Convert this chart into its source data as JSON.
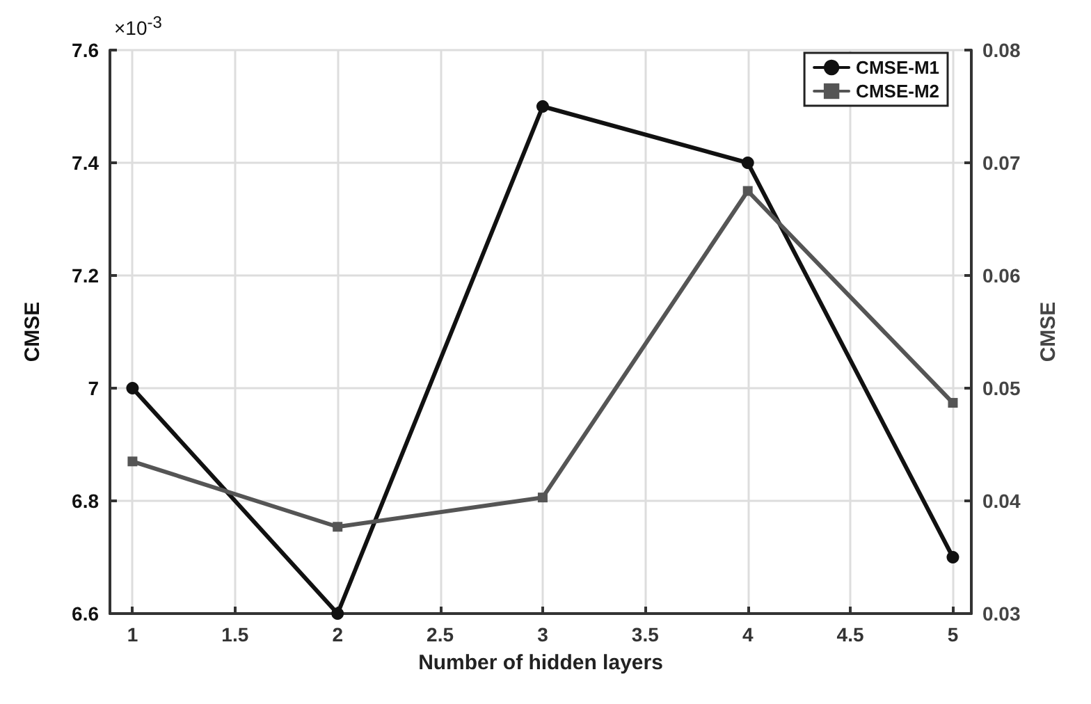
{
  "chart_data": {
    "type": "line",
    "xlabel": "Number of hidden layers",
    "ylabel": "CMSE",
    "y2label": "CMSE",
    "annotations": [
      "×10$^{-3}$"
    ],
    "x": [
      1,
      2,
      3,
      4,
      5
    ],
    "xlim": [
      0.89,
      5.09
    ],
    "xticks": [
      1,
      1.5,
      2,
      2.5,
      3,
      3.5,
      4,
      4.5,
      5
    ],
    "ylim": [
      6.6,
      7.6
    ],
    "yticks": [
      6.6,
      6.8,
      7,
      7.2,
      7.4,
      7.6
    ],
    "y2lim": [
      0.03,
      0.08
    ],
    "y2ticks": [
      0.03,
      0.04,
      0.05,
      0.06,
      0.07,
      0.08
    ],
    "grid": true,
    "legend": "top right",
    "line_style": "solid",
    "series": [
      {
        "name": "CMSE-M1",
        "color": "#111111",
        "marker": "circle",
        "values": [
          7.0,
          6.6,
          7.5,
          7.4,
          6.7
        ]
      },
      {
        "name": "CMSE-M2",
        "color": "#555555",
        "marker": "square",
        "axis": "y2",
        "values": [
          0.0435,
          0.0377,
          0.0403,
          0.0675,
          0.0487
        ]
      }
    ]
  }
}
